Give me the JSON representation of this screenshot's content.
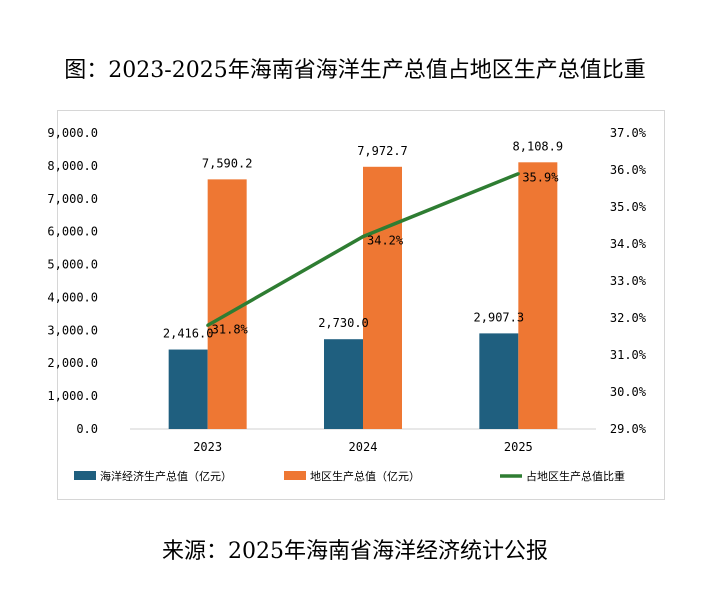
{
  "title": "图：2023-2025年海南省海洋生产总值占地区生产总值比重",
  "source": "来源：2025年海南省海洋经济统计公报",
  "chart_data": {
    "type": "bar+line",
    "categories": [
      "2023",
      "2024",
      "2025"
    ],
    "left_axis": {
      "range": [
        0,
        9000
      ],
      "ticks": [
        0,
        1000,
        2000,
        3000,
        4000,
        5000,
        6000,
        7000,
        8000,
        9000
      ],
      "tick_labels": [
        "0.0",
        "1,000.0",
        "2,000.0",
        "3,000.0",
        "4,000.0",
        "5,000.0",
        "6,000.0",
        "7,000.0",
        "8,000.0",
        "9,000.0"
      ]
    },
    "right_axis": {
      "range": [
        29.0,
        37.0
      ],
      "ticks": [
        29,
        30,
        31,
        32,
        33,
        34,
        35,
        36,
        37
      ],
      "tick_labels": [
        "29.0%",
        "30.0%",
        "31.0%",
        "32.0%",
        "33.0%",
        "34.0%",
        "35.0%",
        "36.0%",
        "37.0%"
      ]
    },
    "series": [
      {
        "name": "海洋经济生产总值（亿元）",
        "kind": "bar",
        "axis": "left",
        "color": "#1f5f7f",
        "values": [
          2416.0,
          2730.0,
          2907.3
        ],
        "labels": [
          "2,416.0",
          "2,730.0",
          "2,907.3"
        ]
      },
      {
        "name": "地区生产总值（亿元）",
        "kind": "bar",
        "axis": "left",
        "color": "#ee7733",
        "values": [
          7590.2,
          7972.7,
          8108.9
        ],
        "labels": [
          "7,590.2",
          "7,972.7",
          "8,108.9"
        ]
      },
      {
        "name": "占地区生产总值比重",
        "kind": "line",
        "axis": "right",
        "color": "#2e7d32",
        "values": [
          31.8,
          34.2,
          35.9
        ],
        "labels": [
          "31.8%",
          "34.2%",
          "35.9%"
        ]
      }
    ],
    "legend_position": "bottom",
    "grid": false
  }
}
